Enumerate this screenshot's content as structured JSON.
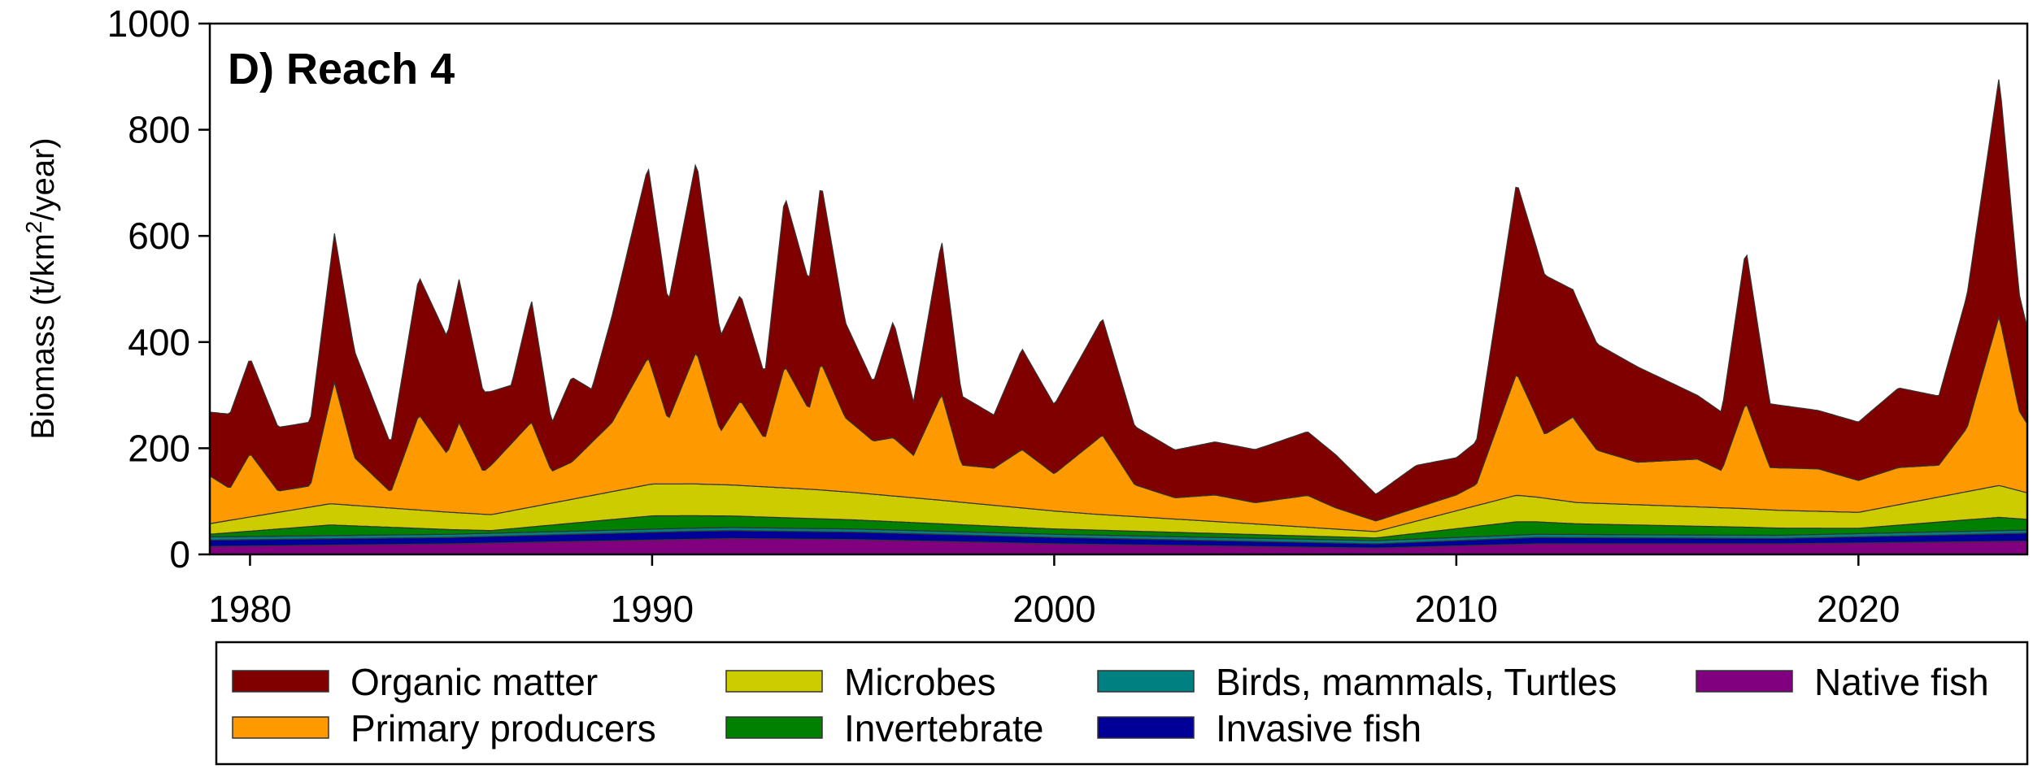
{
  "chart_data": {
    "type": "area",
    "title": "D) Reach 4",
    "ylabel": "Biomass (t/km",
    "ylabel_sup": "2",
    "ylabel_tail": "/year)",
    "xlabel": "",
    "xlim": [
      1979.0,
      2024.2
    ],
    "ylim": [
      0,
      1000
    ],
    "xticks": [
      1980,
      1990,
      2000,
      2010,
      2020
    ],
    "yticks": [
      0,
      200,
      400,
      600,
      800,
      1000
    ],
    "stacked": true,
    "legend_position": "bottom",
    "series": [
      {
        "name": "Native fish",
        "color": "#800080",
        "points": [
          [
            1979,
            15
          ],
          [
            1985,
            20
          ],
          [
            1992,
            30
          ],
          [
            1995,
            28
          ],
          [
            2000,
            20
          ],
          [
            2008,
            12
          ],
          [
            2012,
            20
          ],
          [
            2018,
            20
          ],
          [
            2024.2,
            25
          ]
        ]
      },
      {
        "name": "Invasive fish",
        "color": "#000099",
        "points": [
          [
            1979,
            12
          ],
          [
            1985,
            12
          ],
          [
            1991,
            15
          ],
          [
            1995,
            14
          ],
          [
            2000,
            12
          ],
          [
            2008,
            8
          ],
          [
            2012,
            12
          ],
          [
            2018,
            10
          ],
          [
            2024.2,
            15
          ]
        ]
      },
      {
        "name": "Birds, mammals, Turtles",
        "color": "#008080",
        "points": [
          [
            1979,
            6
          ],
          [
            2024.2,
            6
          ]
        ]
      },
      {
        "name": "Invertebrate",
        "color": "#008000",
        "points": [
          [
            1979,
            5
          ],
          [
            1982,
            20
          ],
          [
            1986,
            5
          ],
          [
            1990,
            25
          ],
          [
            1993,
            20
          ],
          [
            2000,
            10
          ],
          [
            2008,
            5
          ],
          [
            2011.5,
            25
          ],
          [
            2013,
            20
          ],
          [
            2017.2,
            15
          ],
          [
            2020,
            10
          ],
          [
            2023.5,
            25
          ],
          [
            2024.2,
            20
          ]
        ]
      },
      {
        "name": "Microbes",
        "color": "#CCCC00",
        "points": [
          [
            1979,
            20
          ],
          [
            1982,
            40
          ],
          [
            1986,
            30
          ],
          [
            1990,
            60
          ],
          [
            1991,
            60
          ],
          [
            1994,
            55
          ],
          [
            1997,
            45
          ],
          [
            2001,
            30
          ],
          [
            2005,
            20
          ],
          [
            2008,
            12
          ],
          [
            2011.5,
            50
          ],
          [
            2013,
            40
          ],
          [
            2017.2,
            35
          ],
          [
            2020,
            30
          ],
          [
            2023.5,
            60
          ],
          [
            2024.2,
            50
          ]
        ]
      },
      {
        "name": "Primary producers",
        "color": "#FF9900",
        "points": [
          [
            1979,
            90
          ],
          [
            1979.5,
            60
          ],
          [
            1980,
            120
          ],
          [
            1980.7,
            40
          ],
          [
            1981.5,
            40
          ],
          [
            1982.1,
            230
          ],
          [
            1982.6,
            90
          ],
          [
            1983.5,
            30
          ],
          [
            1984.2,
            180
          ],
          [
            1984.9,
            110
          ],
          [
            1985.2,
            170
          ],
          [
            1985.8,
            80
          ],
          [
            1987,
            160
          ],
          [
            1987.5,
            60
          ],
          [
            1988,
            70
          ],
          [
            1989,
            130
          ],
          [
            1989.9,
            240
          ],
          [
            1990.4,
            120
          ],
          [
            1991.1,
            250
          ],
          [
            1991.7,
            100
          ],
          [
            1992.2,
            160
          ],
          [
            1992.8,
            90
          ],
          [
            1993.3,
            230
          ],
          [
            1993.9,
            150
          ],
          [
            1994.2,
            240
          ],
          [
            1994.8,
            140
          ],
          [
            1995.5,
            100
          ],
          [
            1996,
            110
          ],
          [
            1996.5,
            80
          ],
          [
            1997.2,
            200
          ],
          [
            1997.7,
            70
          ],
          [
            1998.5,
            70
          ],
          [
            1999.2,
            110
          ],
          [
            2000,
            70
          ],
          [
            2001.2,
            150
          ],
          [
            2002,
            60
          ],
          [
            2003,
            40
          ],
          [
            2004,
            50
          ],
          [
            2005,
            40
          ],
          [
            2006.3,
            60
          ],
          [
            2007,
            40
          ],
          [
            2008,
            20
          ],
          [
            2009,
            25
          ],
          [
            2010,
            30
          ],
          [
            2010.5,
            40
          ],
          [
            2011.5,
            230
          ],
          [
            2012.2,
            120
          ],
          [
            2012.9,
            160
          ],
          [
            2013.5,
            100
          ],
          [
            2014.5,
            80
          ],
          [
            2016,
            90
          ],
          [
            2016.6,
            70
          ],
          [
            2017.2,
            200
          ],
          [
            2017.8,
            80
          ],
          [
            2019,
            80
          ],
          [
            2020,
            60
          ],
          [
            2021,
            70
          ],
          [
            2022,
            60
          ],
          [
            2022.7,
            120
          ],
          [
            2023.5,
            320
          ],
          [
            2024,
            150
          ],
          [
            2024.2,
            130
          ]
        ]
      },
      {
        "name": "Organic matter",
        "color": "#800000",
        "points": [
          [
            1979,
            120
          ],
          [
            1979.5,
            140
          ],
          [
            1980,
            180
          ],
          [
            1980.7,
            120
          ],
          [
            1981.5,
            120
          ],
          [
            1982.1,
            280
          ],
          [
            1982.6,
            200
          ],
          [
            1983.5,
            90
          ],
          [
            1984.2,
            260
          ],
          [
            1984.9,
            220
          ],
          [
            1985.2,
            270
          ],
          [
            1985.8,
            150
          ],
          [
            1986.5,
            110
          ],
          [
            1987,
            230
          ],
          [
            1987.5,
            90
          ],
          [
            1988,
            160
          ],
          [
            1988.5,
            100
          ],
          [
            1989,
            200
          ],
          [
            1989.9,
            360
          ],
          [
            1990.4,
            220
          ],
          [
            1991.1,
            360
          ],
          [
            1991.7,
            180
          ],
          [
            1992.2,
            200
          ],
          [
            1992.8,
            120
          ],
          [
            1993.3,
            320
          ],
          [
            1993.9,
            240
          ],
          [
            1994.2,
            340
          ],
          [
            1994.8,
            180
          ],
          [
            1995.5,
            110
          ],
          [
            1996,
            220
          ],
          [
            1996.5,
            100
          ],
          [
            1997.2,
            290
          ],
          [
            1997.7,
            130
          ],
          [
            1998.5,
            100
          ],
          [
            1999.2,
            190
          ],
          [
            2000,
            130
          ],
          [
            2001.2,
            220
          ],
          [
            2002,
            110
          ],
          [
            2003,
            90
          ],
          [
            2004,
            100
          ],
          [
            2005,
            100
          ],
          [
            2006.3,
            120
          ],
          [
            2007,
            100
          ],
          [
            2008,
            50
          ],
          [
            2009,
            80
          ],
          [
            2010,
            70
          ],
          [
            2010.5,
            80
          ],
          [
            2011.5,
            360
          ],
          [
            2012.2,
            300
          ],
          [
            2012.9,
            240
          ],
          [
            2013.5,
            200
          ],
          [
            2014.5,
            180
          ],
          [
            2016,
            120
          ],
          [
            2016.6,
            110
          ],
          [
            2017.2,
            290
          ],
          [
            2017.8,
            120
          ],
          [
            2019,
            110
          ],
          [
            2020,
            110
          ],
          [
            2021,
            150
          ],
          [
            2022,
            130
          ],
          [
            2022.7,
            250
          ],
          [
            2023.5,
            450
          ],
          [
            2024,
            220
          ],
          [
            2024.2,
            180
          ]
        ]
      }
    ],
    "legend_order": [
      "Organic matter",
      "Primary producers",
      "Microbes",
      "Invertebrate",
      "Birds, mammals, Turtles",
      "Invasive fish",
      "Native fish"
    ]
  }
}
